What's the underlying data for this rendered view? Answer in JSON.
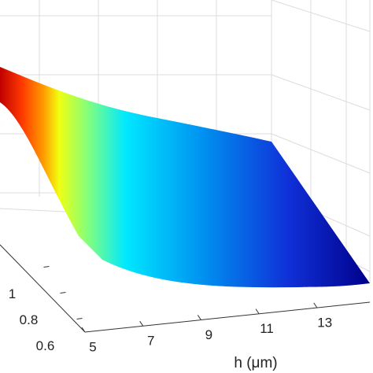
{
  "chart_data": {
    "type": "surface",
    "xlabel": "h (μm)",
    "xlim": [
      5,
      14.5
    ],
    "xticks": [
      5,
      7,
      9,
      11,
      13
    ],
    "ylim": [
      0.5,
      1.3
    ],
    "yticks": [
      0.6,
      0.8,
      1
    ]
  }
}
